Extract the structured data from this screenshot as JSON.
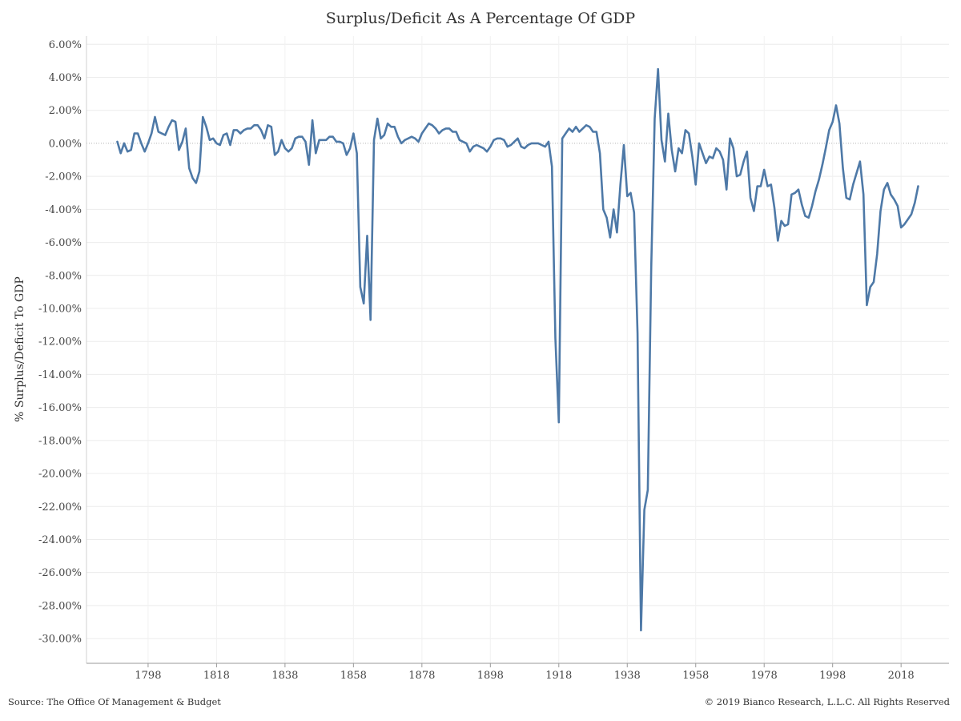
{
  "chart_data": {
    "type": "line",
    "title": "Surplus/Deficit As A Percentage Of GDP",
    "ylabel": "% Surplus/Deficit To GDP",
    "xlabel": "",
    "ylim": [
      -31.5,
      6.5
    ],
    "xlim": [
      1780,
      2032
    ],
    "y_ticks": [
      "6.00%",
      "4.00%",
      "2.00%",
      "0.00%",
      "-2.00%",
      "-4.00%",
      "-6.00%",
      "-8.00%",
      "-10.00%",
      "-12.00%",
      "-14.00%",
      "-16.00%",
      "-18.00%",
      "-20.00%",
      "-22.00%",
      "-24.00%",
      "-26.00%",
      "-28.00%",
      "-30.00%"
    ],
    "y_tick_values": [
      6,
      4,
      2,
      0,
      -2,
      -4,
      -6,
      -8,
      -10,
      -12,
      -14,
      -16,
      -18,
      -20,
      -22,
      -24,
      -26,
      -28,
      -30
    ],
    "x_ticks": [
      "1798",
      "1818",
      "1838",
      "1858",
      "1878",
      "1898",
      "1918",
      "1938",
      "1958",
      "1978",
      "1998",
      "2018"
    ],
    "x_tick_values": [
      1798,
      1818,
      1838,
      1858,
      1878,
      1898,
      1918,
      1938,
      1958,
      1978,
      1998,
      2018
    ],
    "grid": true,
    "zero_line": "dotted",
    "series": [
      {
        "color": "#4e79a7",
        "points": [
          [
            1789,
            0.1
          ],
          [
            1790,
            -0.6
          ],
          [
            1791,
            0.0
          ],
          [
            1792,
            -0.5
          ],
          [
            1793,
            -0.4
          ],
          [
            1794,
            0.6
          ],
          [
            1795,
            0.6
          ],
          [
            1796,
            0.0
          ],
          [
            1797,
            -0.5
          ],
          [
            1798,
            0.0
          ],
          [
            1799,
            0.6
          ],
          [
            1800,
            1.6
          ],
          [
            1801,
            0.7
          ],
          [
            1802,
            0.6
          ],
          [
            1803,
            0.5
          ],
          [
            1804,
            1.0
          ],
          [
            1805,
            1.4
          ],
          [
            1806,
            1.3
          ],
          [
            1807,
            -0.4
          ],
          [
            1808,
            0.1
          ],
          [
            1809,
            0.9
          ],
          [
            1810,
            -1.5
          ],
          [
            1811,
            -2.1
          ],
          [
            1812,
            -2.4
          ],
          [
            1813,
            -1.7
          ],
          [
            1814,
            1.6
          ],
          [
            1815,
            1.0
          ],
          [
            1816,
            0.2
          ],
          [
            1817,
            0.3
          ],
          [
            1818,
            0.0
          ],
          [
            1819,
            -0.1
          ],
          [
            1820,
            0.5
          ],
          [
            1821,
            0.6
          ],
          [
            1822,
            -0.1
          ],
          [
            1823,
            0.8
          ],
          [
            1824,
            0.8
          ],
          [
            1825,
            0.6
          ],
          [
            1826,
            0.8
          ],
          [
            1827,
            0.9
          ],
          [
            1828,
            0.9
          ],
          [
            1829,
            1.1
          ],
          [
            1830,
            1.1
          ],
          [
            1831,
            0.8
          ],
          [
            1832,
            0.3
          ],
          [
            1833,
            1.1
          ],
          [
            1834,
            1.0
          ],
          [
            1835,
            -0.7
          ],
          [
            1836,
            -0.5
          ],
          [
            1837,
            0.2
          ],
          [
            1838,
            -0.3
          ],
          [
            1839,
            -0.5
          ],
          [
            1840,
            -0.3
          ],
          [
            1841,
            0.3
          ],
          [
            1842,
            0.4
          ],
          [
            1843,
            0.4
          ],
          [
            1844,
            0.1
          ],
          [
            1845,
            -1.3
          ],
          [
            1846,
            1.4
          ],
          [
            1847,
            -0.6
          ],
          [
            1848,
            0.2
          ],
          [
            1849,
            0.2
          ],
          [
            1850,
            0.2
          ],
          [
            1851,
            0.4
          ],
          [
            1852,
            0.4
          ],
          [
            1853,
            0.1
          ],
          [
            1854,
            0.1
          ],
          [
            1855,
            0.0
          ],
          [
            1856,
            -0.7
          ],
          [
            1857,
            -0.3
          ],
          [
            1858,
            0.6
          ],
          [
            1859,
            -0.6
          ],
          [
            1860,
            -8.7
          ],
          [
            1861,
            -9.7
          ],
          [
            1862,
            -5.6
          ],
          [
            1863,
            -10.7
          ],
          [
            1864,
            0.2
          ],
          [
            1865,
            1.5
          ],
          [
            1866,
            0.3
          ],
          [
            1867,
            0.5
          ],
          [
            1868,
            1.2
          ],
          [
            1869,
            1.0
          ],
          [
            1870,
            1.0
          ],
          [
            1871,
            0.4
          ],
          [
            1872,
            0.0
          ],
          [
            1873,
            0.2
          ],
          [
            1874,
            0.3
          ],
          [
            1875,
            0.4
          ],
          [
            1876,
            0.3
          ],
          [
            1877,
            0.1
          ],
          [
            1878,
            0.6
          ],
          [
            1879,
            0.9
          ],
          [
            1880,
            1.2
          ],
          [
            1881,
            1.1
          ],
          [
            1882,
            0.9
          ],
          [
            1883,
            0.6
          ],
          [
            1884,
            0.8
          ],
          [
            1885,
            0.9
          ],
          [
            1886,
            0.9
          ],
          [
            1887,
            0.7
          ],
          [
            1888,
            0.7
          ],
          [
            1889,
            0.2
          ],
          [
            1890,
            0.1
          ],
          [
            1891,
            0.0
          ],
          [
            1892,
            -0.5
          ],
          [
            1893,
            -0.2
          ],
          [
            1894,
            -0.1
          ],
          [
            1895,
            -0.2
          ],
          [
            1896,
            -0.3
          ],
          [
            1897,
            -0.5
          ],
          [
            1898,
            -0.2
          ],
          [
            1899,
            0.2
          ],
          [
            1900,
            0.3
          ],
          [
            1901,
            0.3
          ],
          [
            1902,
            0.2
          ],
          [
            1903,
            -0.2
          ],
          [
            1904,
            -0.1
          ],
          [
            1905,
            0.1
          ],
          [
            1906,
            0.3
          ],
          [
            1907,
            -0.2
          ],
          [
            1908,
            -0.3
          ],
          [
            1909,
            -0.1
          ],
          [
            1910,
            0.0
          ],
          [
            1911,
            0.0
          ],
          [
            1912,
            0.0
          ],
          [
            1913,
            -0.1
          ],
          [
            1914,
            -0.2
          ],
          [
            1915,
            0.1
          ],
          [
            1916,
            -1.4
          ],
          [
            1917,
            -11.8
          ],
          [
            1918,
            -16.9
          ],
          [
            1919,
            0.3
          ],
          [
            1920,
            0.6
          ],
          [
            1921,
            0.9
          ],
          [
            1922,
            0.7
          ],
          [
            1923,
            1.0
          ],
          [
            1924,
            0.7
          ],
          [
            1925,
            0.9
          ],
          [
            1926,
            1.1
          ],
          [
            1927,
            1.0
          ],
          [
            1928,
            0.7
          ],
          [
            1929,
            0.7
          ],
          [
            1930,
            -0.6
          ],
          [
            1931,
            -4.0
          ],
          [
            1932,
            -4.5
          ],
          [
            1933,
            -5.7
          ],
          [
            1934,
            -4.0
          ],
          [
            1935,
            -5.4
          ],
          [
            1936,
            -2.5
          ],
          [
            1937,
            -0.1
          ],
          [
            1938,
            -3.2
          ],
          [
            1939,
            -3.0
          ],
          [
            1940,
            -4.2
          ],
          [
            1941,
            -11.5
          ],
          [
            1942,
            -29.5
          ],
          [
            1943,
            -22.2
          ],
          [
            1944,
            -21.0
          ],
          [
            1945,
            -7.5
          ],
          [
            1946,
            1.5
          ],
          [
            1947,
            4.5
          ],
          [
            1948,
            0.2
          ],
          [
            1949,
            -1.1
          ],
          [
            1950,
            1.8
          ],
          [
            1951,
            -0.4
          ],
          [
            1952,
            -1.7
          ],
          [
            1953,
            -0.3
          ],
          [
            1954,
            -0.6
          ],
          [
            1955,
            0.8
          ],
          [
            1956,
            0.6
          ],
          [
            1957,
            -0.8
          ],
          [
            1958,
            -2.5
          ],
          [
            1959,
            0.0
          ],
          [
            1960,
            -0.6
          ],
          [
            1961,
            -1.2
          ],
          [
            1962,
            -0.8
          ],
          [
            1963,
            -0.9
          ],
          [
            1964,
            -0.3
          ],
          [
            1965,
            -0.5
          ],
          [
            1966,
            -1.0
          ],
          [
            1967,
            -2.8
          ],
          [
            1968,
            0.3
          ],
          [
            1969,
            -0.3
          ],
          [
            1970,
            -2.0
          ],
          [
            1971,
            -1.9
          ],
          [
            1972,
            -1.1
          ],
          [
            1973,
            -0.5
          ],
          [
            1974,
            -3.3
          ],
          [
            1975,
            -4.1
          ],
          [
            1976,
            -2.6
          ],
          [
            1977,
            -2.6
          ],
          [
            1978,
            -1.6
          ],
          [
            1979,
            -2.6
          ],
          [
            1980,
            -2.5
          ],
          [
            1981,
            -3.9
          ],
          [
            1982,
            -5.9
          ],
          [
            1983,
            -4.7
          ],
          [
            1984,
            -5.0
          ],
          [
            1985,
            -4.9
          ],
          [
            1986,
            -3.1
          ],
          [
            1987,
            -3.0
          ],
          [
            1988,
            -2.8
          ],
          [
            1989,
            -3.7
          ],
          [
            1990,
            -4.4
          ],
          [
            1991,
            -4.5
          ],
          [
            1992,
            -3.8
          ],
          [
            1993,
            -2.9
          ],
          [
            1994,
            -2.2
          ],
          [
            1995,
            -1.3
          ],
          [
            1996,
            -0.3
          ],
          [
            1997,
            0.8
          ],
          [
            1998,
            1.3
          ],
          [
            1999,
            2.3
          ],
          [
            2000,
            1.2
          ],
          [
            2001,
            -1.5
          ],
          [
            2002,
            -3.3
          ],
          [
            2003,
            -3.4
          ],
          [
            2004,
            -2.5
          ],
          [
            2005,
            -1.8
          ],
          [
            2006,
            -1.1
          ],
          [
            2007,
            -3.1
          ],
          [
            2008,
            -9.8
          ],
          [
            2009,
            -8.7
          ],
          [
            2010,
            -8.4
          ],
          [
            2011,
            -6.7
          ],
          [
            2012,
            -4.1
          ],
          [
            2013,
            -2.8
          ],
          [
            2014,
            -2.4
          ],
          [
            2015,
            -3.1
          ],
          [
            2016,
            -3.4
          ],
          [
            2017,
            -3.8
          ],
          [
            2018,
            -5.1
          ],
          [
            2019,
            -4.9
          ],
          [
            2020,
            -4.6
          ],
          [
            2021,
            -4.3
          ],
          [
            2022,
            -3.6
          ],
          [
            2023,
            -2.6
          ]
        ]
      }
    ]
  },
  "footer": {
    "source": "Source: The Office Of Management & Budget",
    "copyright": "© 2019 Bianco Research, L.L.C. All Rights Reserved"
  }
}
